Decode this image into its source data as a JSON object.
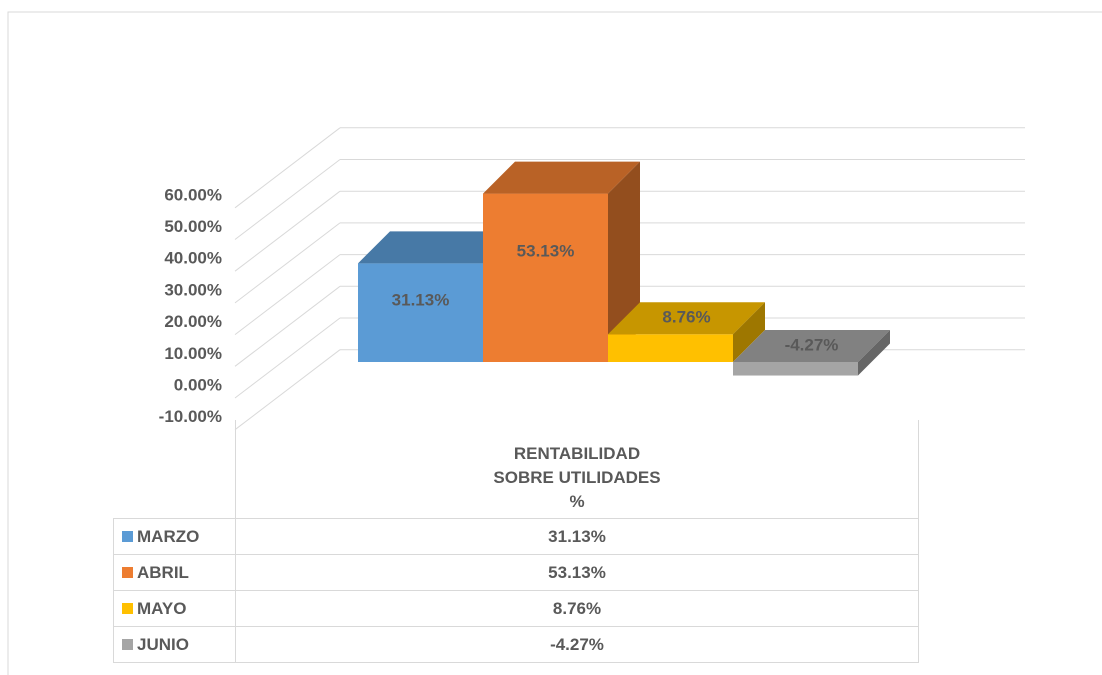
{
  "chart_data": {
    "type": "bar3d",
    "categories": [
      "RENTABILIDAD\nSOBRE UTILIDADES\n%"
    ],
    "series": [
      {
        "name": "MARZO",
        "color": "#5b9bd5",
        "values": [
          31.13
        ],
        "value_labels": [
          "31.13%"
        ]
      },
      {
        "name": "ABRIL",
        "color": "#ed7d31",
        "values": [
          53.13
        ],
        "value_labels": [
          "53.13%"
        ]
      },
      {
        "name": "MAYO",
        "color": "#ffc000",
        "values": [
          8.76
        ],
        "value_labels": [
          "8.76%"
        ]
      },
      {
        "name": "JUNIO",
        "color": "#a5a5a5",
        "values": [
          -4.27
        ],
        "value_labels": [
          "-4.27%"
        ]
      }
    ],
    "ylim": [
      -10,
      60
    ],
    "yticks": [
      {
        "value": -10,
        "label": "-10.00%"
      },
      {
        "value": 0,
        "label": "0.00%"
      },
      {
        "value": 10,
        "label": "10.00%"
      },
      {
        "value": 20,
        "label": "20.00%"
      },
      {
        "value": 30,
        "label": "30.00%"
      },
      {
        "value": 40,
        "label": "40.00%"
      },
      {
        "value": 50,
        "label": "50.00%"
      },
      {
        "value": 60,
        "label": "60.00%"
      }
    ],
    "grid": true,
    "data_table": true
  }
}
